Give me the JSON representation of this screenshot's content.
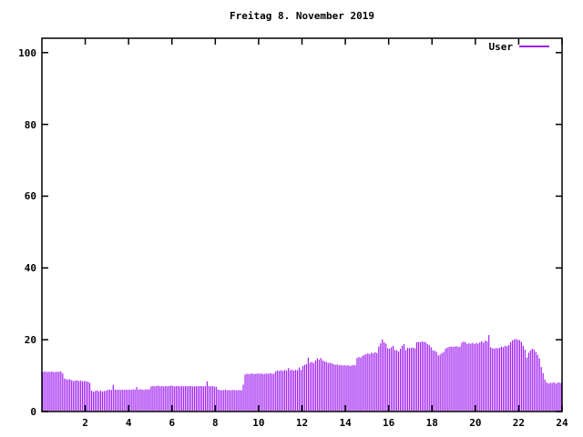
{
  "title": "Freitag 8. November 2019",
  "legend": {
    "label": "User",
    "position": "top-right-inside"
  },
  "colors": {
    "series": "#a020f0",
    "axis": "#000000",
    "background": "#ffffff"
  },
  "chart_data": {
    "type": "bar",
    "title": "Freitag 8. November 2019",
    "xlabel": "",
    "ylabel": "",
    "xlim": [
      0,
      24
    ],
    "ylim": [
      0,
      104
    ],
    "grid": false,
    "x_ticks": [
      2,
      4,
      6,
      8,
      10,
      12,
      14,
      16,
      18,
      20,
      22,
      24
    ],
    "y_ticks": [
      0,
      20,
      40,
      60,
      80,
      100
    ],
    "x_unit": "hour-of-day",
    "interval_minutes": 5,
    "series": [
      {
        "name": "User",
        "color": "#a020f0",
        "values": [
          11,
          11.2,
          11,
          11.1,
          11,
          11.2,
          11,
          11,
          11.1,
          11,
          11.2,
          10.6,
          9.2,
          9,
          8.9,
          9,
          8.7,
          8.5,
          8.6,
          8.7,
          8.5,
          8.6,
          8.4,
          8.5,
          8.4,
          8.3,
          8,
          5.8,
          5.5,
          5.7,
          5.9,
          5.6,
          5.8,
          5.6,
          5.7,
          5.8,
          6,
          6.1,
          6,
          7.4,
          6.1,
          6,
          6.1,
          6,
          6.1,
          6,
          6.1,
          6,
          6.1,
          6,
          6.2,
          6.1,
          6.8,
          6.1,
          6.2,
          6.1,
          6,
          6.2,
          6.1,
          6.2,
          7,
          7.1,
          7,
          7.1,
          7.2,
          7,
          7.1,
          7,
          7.1,
          7,
          7.1,
          7.2,
          7.1,
          7,
          7.1,
          7.1,
          7,
          7.2,
          7,
          7.1,
          7,
          7.1,
          7.1,
          7,
          7,
          7.1,
          7,
          7.1,
          7.1,
          7,
          7.1,
          8.4,
          7.1,
          7,
          7.1,
          6.9,
          6.9,
          6.1,
          6,
          5.9,
          6,
          6.1,
          5.9,
          6,
          5.9,
          6,
          6,
          5.9,
          5.9,
          6,
          5.9,
          7.5,
          10.3,
          10.5,
          10.4,
          10.5,
          10.6,
          10.4,
          10.5,
          10.6,
          10.5,
          10.6,
          10.4,
          10.5,
          10.6,
          10.5,
          10.7,
          10.5,
          10.6,
          11.2,
          11.4,
          11.3,
          11.5,
          11.3,
          11.6,
          11.4,
          12.1,
          11.5,
          11.6,
          11.4,
          11.6,
          11.5,
          12.3,
          11.6,
          12.7,
          13,
          13.2,
          15,
          13.6,
          13.8,
          13.5,
          14.2,
          14.8,
          14.4,
          14.9,
          14.2,
          14,
          13.8,
          13.5,
          13.6,
          13.4,
          13.2,
          13,
          13.1,
          12.9,
          13,
          12.8,
          12.9,
          12.8,
          12.9,
          12.7,
          12.8,
          13,
          12.9,
          14.9,
          15.2,
          15,
          15.5,
          15.8,
          16,
          16.2,
          16,
          16.4,
          16.2,
          16.5,
          16.3,
          18.1,
          19,
          20.1,
          19.3,
          18.9,
          17.6,
          17.5,
          17.9,
          18.3,
          17.1,
          17.1,
          16.7,
          17.5,
          18.3,
          18.8,
          17.1,
          17.7,
          17.7,
          17.7,
          17.8,
          17.6,
          19.3,
          19.4,
          19.3,
          19.5,
          19.4,
          19.3,
          18.8,
          18.5,
          17.9,
          17.1,
          16.9,
          16.6,
          15.6,
          15.9,
          16.3,
          16.6,
          17.5,
          17.8,
          18,
          18.1,
          18,
          18.1,
          18.2,
          18,
          18.1,
          19.2,
          19.5,
          19.3,
          18.8,
          19,
          18.9,
          19.1,
          18.8,
          19.1,
          18.9,
          19.3,
          19.6,
          19.2,
          19.8,
          19.5,
          21.3,
          17.9,
          17.6,
          17.5,
          17.7,
          17.6,
          17.8,
          18.1,
          17.9,
          18.3,
          18.2,
          18.5,
          19.3,
          19.8,
          20.1,
          20.2,
          20,
          19.9,
          19.4,
          18.3,
          17.2,
          15,
          16.4,
          17,
          17.5,
          17.2,
          16.6,
          15.8,
          14.8,
          12.4,
          10.7,
          8.9,
          8.1,
          7.8,
          8,
          7.9,
          8.2,
          7.8,
          8,
          8.1,
          7.9
        ]
      }
    ]
  }
}
